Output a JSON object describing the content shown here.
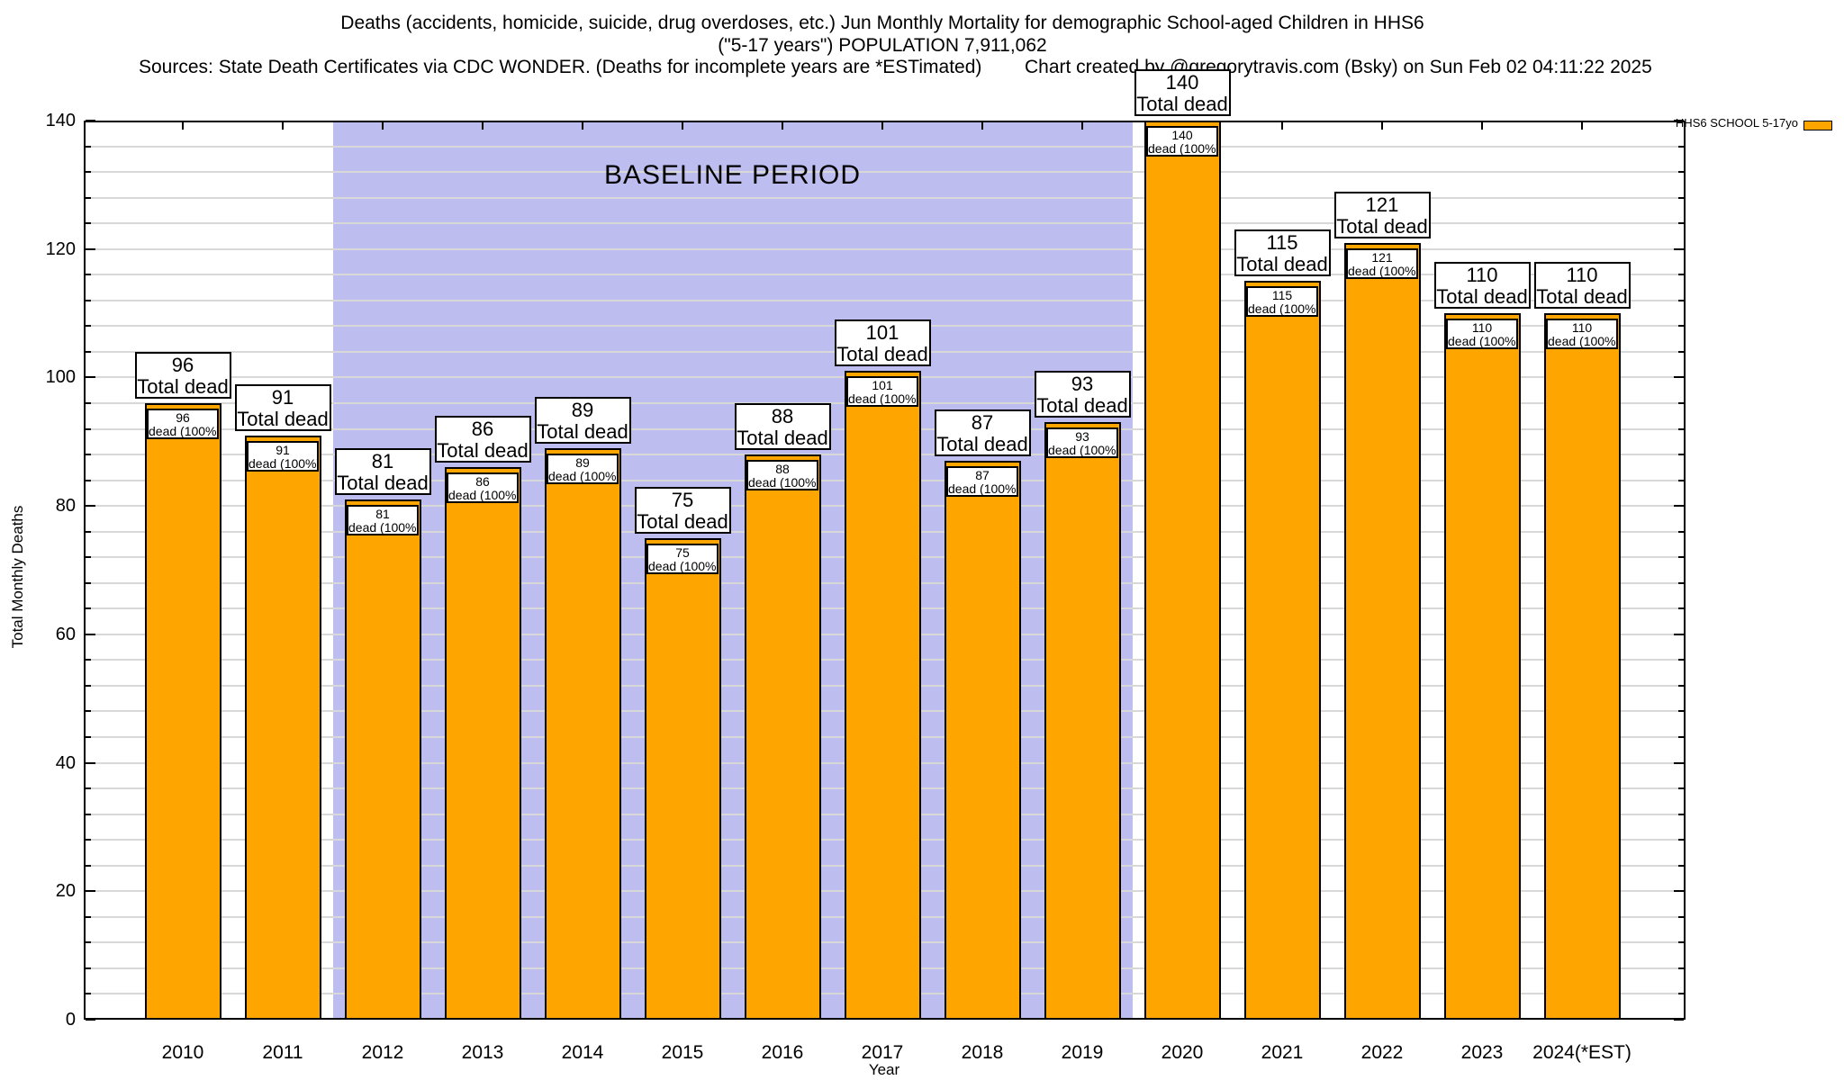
{
  "header": {
    "title_line1": "Deaths (accidents, homicide, suicide, drug overdoses, etc.) Jun Monthly Mortality for demographic School-aged Children in HHS6",
    "title_line2": "(\"5-17 years\") POPULATION 7,911,062",
    "sources": "Sources: State Death Certificates via CDC WONDER. (Deaths for incomplete years are *ESTimated)",
    "credit": "Chart created by @gregorytravis.com (Bsky) on Sun Feb 02 04:11:22 2025"
  },
  "legend": {
    "label": "HHS6 SCHOOL 5-17yo",
    "swatch_color": "#FFA500"
  },
  "annotations": {
    "baseline_label": "BASELINE PERIOD",
    "baseline_start": 2011.5,
    "baseline_end": 2019.5,
    "baseline_color": "#BDBDF0"
  },
  "chart_data": {
    "type": "bar",
    "title": "Jun Monthly Mortality for demographic School-aged Children in HHS6",
    "series_name": "HHS6 SCHOOL 5-17yo",
    "categories": [
      "2010",
      "2011",
      "2012",
      "2013",
      "2014",
      "2015",
      "2016",
      "2017",
      "2018",
      "2019",
      "2020",
      "2021",
      "2022",
      "2023",
      "2024(*EST)"
    ],
    "years": [
      2010,
      2011,
      2012,
      2013,
      2014,
      2015,
      2016,
      2017,
      2018,
      2019,
      2020,
      2021,
      2022,
      2023,
      2024
    ],
    "values": [
      96,
      91,
      81,
      86,
      89,
      75,
      88,
      101,
      87,
      93,
      140,
      115,
      121,
      110,
      110
    ],
    "bar_label_top": "Total dead",
    "bar_label_inner": "dead (100%)",
    "xlabel": "Year",
    "ylabel": "Total Monthly Deaths",
    "ylim": [
      0,
      140
    ],
    "ytick_interval": 20,
    "ytick_labels": [
      "0",
      "20",
      "40",
      "60",
      "80",
      "100",
      "120",
      "140"
    ],
    "minor_grid_interval": 4,
    "grid": true,
    "bar_color": "#FFA500",
    "bar_border_color": "#000000",
    "legend_position": "top-right"
  }
}
